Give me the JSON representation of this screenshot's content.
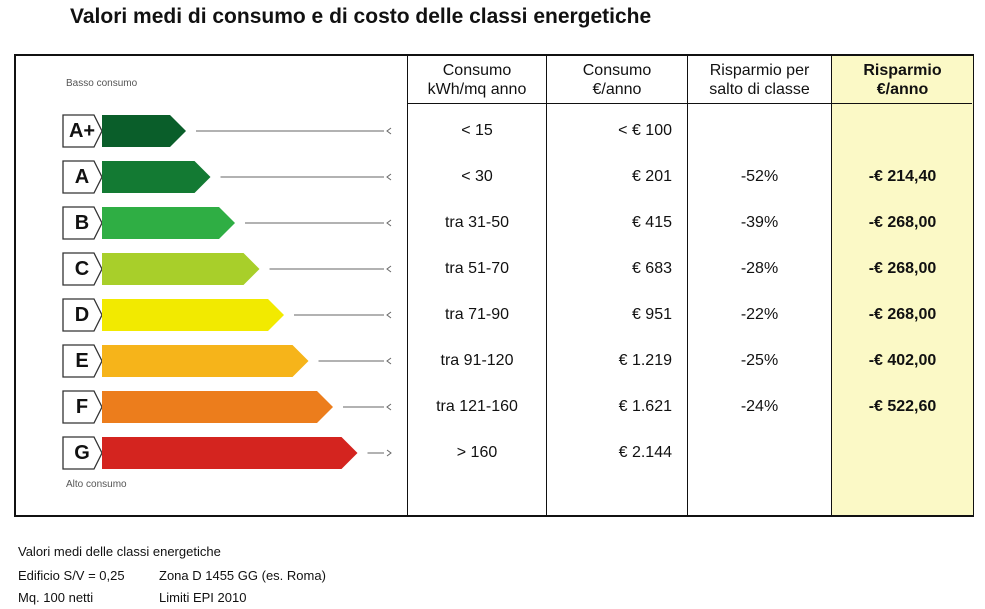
{
  "title": "Valori medi di consumo e di costo delle classi energetiche",
  "label": {
    "low": "Basso consumo",
    "high": "Alto consumo"
  },
  "headers": {
    "consumo_kwh": [
      "Consumo",
      "kWh/mq anno"
    ],
    "consumo_eur": [
      "Consumo",
      "€/anno"
    ],
    "risparmio_salto": [
      "Risparmio per",
      "salto di classe"
    ],
    "risparmio_anno": [
      "Risparmio",
      "€/anno"
    ]
  },
  "rows": [
    {
      "classe": "A+",
      "kwh": "< 15",
      "eur": "< € 100",
      "salto": "",
      "risparmio": "",
      "color": "#0a5e2a"
    },
    {
      "classe": "A",
      "kwh": "< 30",
      "eur": "€ 201",
      "salto": "-52%",
      "risparmio": "-€ 214,40",
      "color": "#137a33"
    },
    {
      "classe": "B",
      "kwh": "tra 31-50",
      "eur": "€ 415",
      "salto": "-39%",
      "risparmio": "-€ 268,00",
      "color": "#2fae44"
    },
    {
      "classe": "C",
      "kwh": "tra 51-70",
      "eur": "€ 683",
      "salto": "-28%",
      "risparmio": "-€ 268,00",
      "color": "#a8cf2a"
    },
    {
      "classe": "D",
      "kwh": "tra 71-90",
      "eur": "€ 951",
      "salto": "-22%",
      "risparmio": "-€ 268,00",
      "color": "#f2ea00"
    },
    {
      "classe": "E",
      "kwh": "tra 91-120",
      "eur": "€ 1.219",
      "salto": "-25%",
      "risparmio": "-€ 402,00",
      "color": "#f6b41a"
    },
    {
      "classe": "F",
      "kwh": "tra 121-160",
      "eur": "€ 1.621",
      "salto": "-24%",
      "risparmio": "-€ 522,60",
      "color": "#ec7d1c"
    },
    {
      "classe": "G",
      "kwh": "> 160",
      "eur": "€ 2.144",
      "salto": "",
      "risparmio": "",
      "color": "#d4241f"
    }
  ],
  "notes": {
    "line1": "Valori medi delle classi energetiche",
    "line2_a": "Edificio S/V = 0,25",
    "line2_b": "Zona D 1455 GG (es. Roma)",
    "line3_a": "Mq. 100 netti",
    "line3_b": "Limiti EPI 2010"
  }
}
